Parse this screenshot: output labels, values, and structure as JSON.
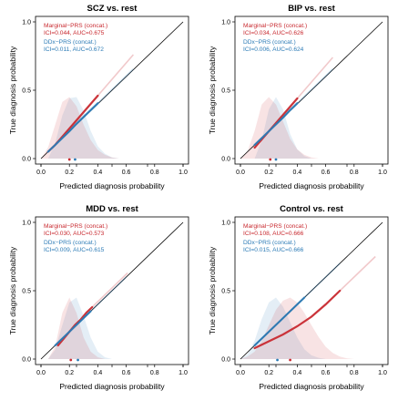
{
  "figure": {
    "xlabel": "Predicted diagnosis probability",
    "ylabel": "True diagnosis probability",
    "ticks": [
      "0.0",
      "0.5",
      "1.0"
    ],
    "colors": {
      "marginal": "#c8292f",
      "ddx": "#2c7bb6",
      "reference": "#000000",
      "frame": "#000000"
    }
  },
  "chart_data": [
    {
      "type": "line",
      "title": "SCZ vs. rest",
      "xlabel": "Predicted diagnosis probability",
      "ylabel": "True diagnosis probability",
      "xlim": [
        0,
        1
      ],
      "ylim": [
        0,
        1
      ],
      "xticks": [
        0.0,
        0.5,
        1.0
      ],
      "yticks": [
        0.0,
        0.5,
        1.0
      ],
      "legend_position": "top-left",
      "series": [
        {
          "name": "Marginal−PRS (concat.)",
          "metrics": "ICI=0.044, AUC=0.675",
          "color": "#c8292f",
          "x": [
            0.05,
            0.1,
            0.15,
            0.2,
            0.25,
            0.3,
            0.35,
            0.4
          ],
          "y": [
            0.05,
            0.1,
            0.16,
            0.22,
            0.28,
            0.34,
            0.4,
            0.46
          ],
          "density_x": [
            0.0,
            0.05,
            0.1,
            0.15,
            0.2,
            0.25,
            0.3,
            0.35,
            0.4,
            0.45,
            0.5,
            0.55
          ],
          "density": [
            0.0,
            0.18,
            0.55,
            0.92,
            1.0,
            0.85,
            0.55,
            0.3,
            0.14,
            0.06,
            0.02,
            0.0
          ],
          "mean_marker": 0.2
        },
        {
          "name": "DDx−PRS (concat.)",
          "metrics": "ICI=0.011, AUC=0.672",
          "color": "#2c7bb6",
          "x": [
            0.05,
            0.1,
            0.15,
            0.2,
            0.25,
            0.3,
            0.35,
            0.4
          ],
          "y": [
            0.05,
            0.1,
            0.15,
            0.2,
            0.255,
            0.305,
            0.355,
            0.405
          ],
          "density_x": [
            0.05,
            0.1,
            0.15,
            0.2,
            0.25,
            0.3,
            0.35,
            0.4,
            0.45,
            0.5,
            0.55
          ],
          "density": [
            0.0,
            0.25,
            0.7,
            0.98,
            1.0,
            0.78,
            0.45,
            0.2,
            0.08,
            0.02,
            0.0
          ],
          "mean_marker": 0.24
        }
      ]
    },
    {
      "type": "line",
      "title": "BIP vs. rest",
      "xlabel": "Predicted diagnosis probability",
      "ylabel": "True diagnosis probability",
      "xlim": [
        0,
        1
      ],
      "ylim": [
        0,
        1
      ],
      "xticks": [
        0.0,
        0.5,
        1.0
      ],
      "yticks": [
        0.0,
        0.5,
        1.0
      ],
      "legend_position": "top-left",
      "series": [
        {
          "name": "Marginal−PRS (concat.)",
          "metrics": "ICI=0.034, AUC=0.626",
          "color": "#c8292f",
          "x": [
            0.1,
            0.15,
            0.2,
            0.25,
            0.3,
            0.35,
            0.4
          ],
          "y": [
            0.08,
            0.14,
            0.2,
            0.26,
            0.32,
            0.38,
            0.44
          ],
          "density_x": [
            0.0,
            0.05,
            0.1,
            0.15,
            0.2,
            0.25,
            0.3,
            0.35,
            0.4,
            0.45,
            0.5,
            0.55
          ],
          "density": [
            0.0,
            0.12,
            0.45,
            0.88,
            1.0,
            0.88,
            0.6,
            0.32,
            0.15,
            0.06,
            0.02,
            0.0
          ],
          "mean_marker": 0.21
        },
        {
          "name": "DDx−PRS (concat.)",
          "metrics": "ICI=0.006, AUC=0.624",
          "color": "#2c7bb6",
          "x": [
            0.1,
            0.15,
            0.2,
            0.25,
            0.3,
            0.35,
            0.4
          ],
          "y": [
            0.1,
            0.15,
            0.2,
            0.25,
            0.3,
            0.355,
            0.405
          ],
          "density_x": [
            0.1,
            0.15,
            0.2,
            0.25,
            0.3,
            0.35,
            0.4,
            0.45,
            0.5
          ],
          "density": [
            0.0,
            0.3,
            0.8,
            1.0,
            0.8,
            0.4,
            0.15,
            0.04,
            0.0
          ],
          "mean_marker": 0.25
        }
      ]
    },
    {
      "type": "line",
      "title": "MDD vs. rest",
      "xlabel": "Predicted diagnosis probability",
      "ylabel": "True diagnosis probability",
      "xlim": [
        0,
        1
      ],
      "ylim": [
        0,
        1
      ],
      "xticks": [
        0.0,
        0.5,
        1.0
      ],
      "yticks": [
        0.0,
        0.5,
        1.0
      ],
      "legend_position": "top-left",
      "series": [
        {
          "name": "Marginal−PRS (concat.)",
          "metrics": "ICI=0.030, AUC=0.573",
          "color": "#c8292f",
          "x": [
            0.12,
            0.16,
            0.2,
            0.24,
            0.28,
            0.32,
            0.36
          ],
          "y": [
            0.1,
            0.15,
            0.2,
            0.25,
            0.29,
            0.34,
            0.38
          ],
          "density_x": [
            0.05,
            0.1,
            0.15,
            0.2,
            0.25,
            0.3,
            0.35,
            0.4,
            0.45
          ],
          "density": [
            0.0,
            0.2,
            0.75,
            1.0,
            0.75,
            0.35,
            0.12,
            0.03,
            0.0
          ],
          "mean_marker": 0.21
        },
        {
          "name": "DDx−PRS (concat.)",
          "metrics": "ICI=0.009, AUC=0.615",
          "color": "#2c7bb6",
          "x": [
            0.1,
            0.15,
            0.2,
            0.25,
            0.3,
            0.35
          ],
          "y": [
            0.1,
            0.15,
            0.2,
            0.25,
            0.3,
            0.35
          ],
          "density_x": [
            0.05,
            0.1,
            0.15,
            0.2,
            0.25,
            0.3,
            0.35,
            0.4,
            0.45,
            0.5
          ],
          "density": [
            0.0,
            0.15,
            0.55,
            0.92,
            1.0,
            0.7,
            0.35,
            0.12,
            0.03,
            0.0
          ],
          "mean_marker": 0.26
        }
      ]
    },
    {
      "type": "line",
      "title": "Control vs. rest",
      "xlabel": "Predicted diagnosis probability",
      "ylabel": "True diagnosis probability",
      "xlim": [
        0,
        1
      ],
      "ylim": [
        0,
        1
      ],
      "xticks": [
        0.0,
        0.5,
        1.0
      ],
      "yticks": [
        0.0,
        0.5,
        1.0
      ],
      "legend_position": "top-left",
      "series": [
        {
          "name": "Marginal−PRS (concat.)",
          "metrics": "ICI=0.108, AUC=0.666",
          "color": "#c8292f",
          "x": [
            0.1,
            0.2,
            0.3,
            0.4,
            0.5,
            0.6,
            0.7
          ],
          "y": [
            0.08,
            0.13,
            0.18,
            0.24,
            0.31,
            0.4,
            0.5
          ],
          "density_x": [
            0.0,
            0.05,
            0.1,
            0.15,
            0.2,
            0.25,
            0.3,
            0.35,
            0.4,
            0.45,
            0.5,
            0.55,
            0.6,
            0.65,
            0.7,
            0.75,
            0.8
          ],
          "density": [
            0.0,
            0.04,
            0.12,
            0.3,
            0.55,
            0.8,
            0.95,
            1.0,
            0.92,
            0.75,
            0.55,
            0.36,
            0.2,
            0.1,
            0.04,
            0.01,
            0.0
          ],
          "mean_marker": 0.35
        },
        {
          "name": "DDx−PRS (concat.)",
          "metrics": "ICI=0.015, AUC=0.666",
          "color": "#2c7bb6",
          "x": [
            0.1,
            0.15,
            0.2,
            0.25,
            0.3,
            0.35,
            0.4,
            0.45
          ],
          "y": [
            0.1,
            0.15,
            0.2,
            0.25,
            0.3,
            0.35,
            0.4,
            0.45
          ],
          "density_x": [
            0.0,
            0.05,
            0.1,
            0.15,
            0.2,
            0.25,
            0.3,
            0.35,
            0.4,
            0.45,
            0.5,
            0.55,
            0.6
          ],
          "density": [
            0.0,
            0.08,
            0.3,
            0.65,
            0.92,
            1.0,
            0.85,
            0.6,
            0.35,
            0.16,
            0.06,
            0.02,
            0.0
          ],
          "mean_marker": 0.26
        }
      ]
    }
  ]
}
